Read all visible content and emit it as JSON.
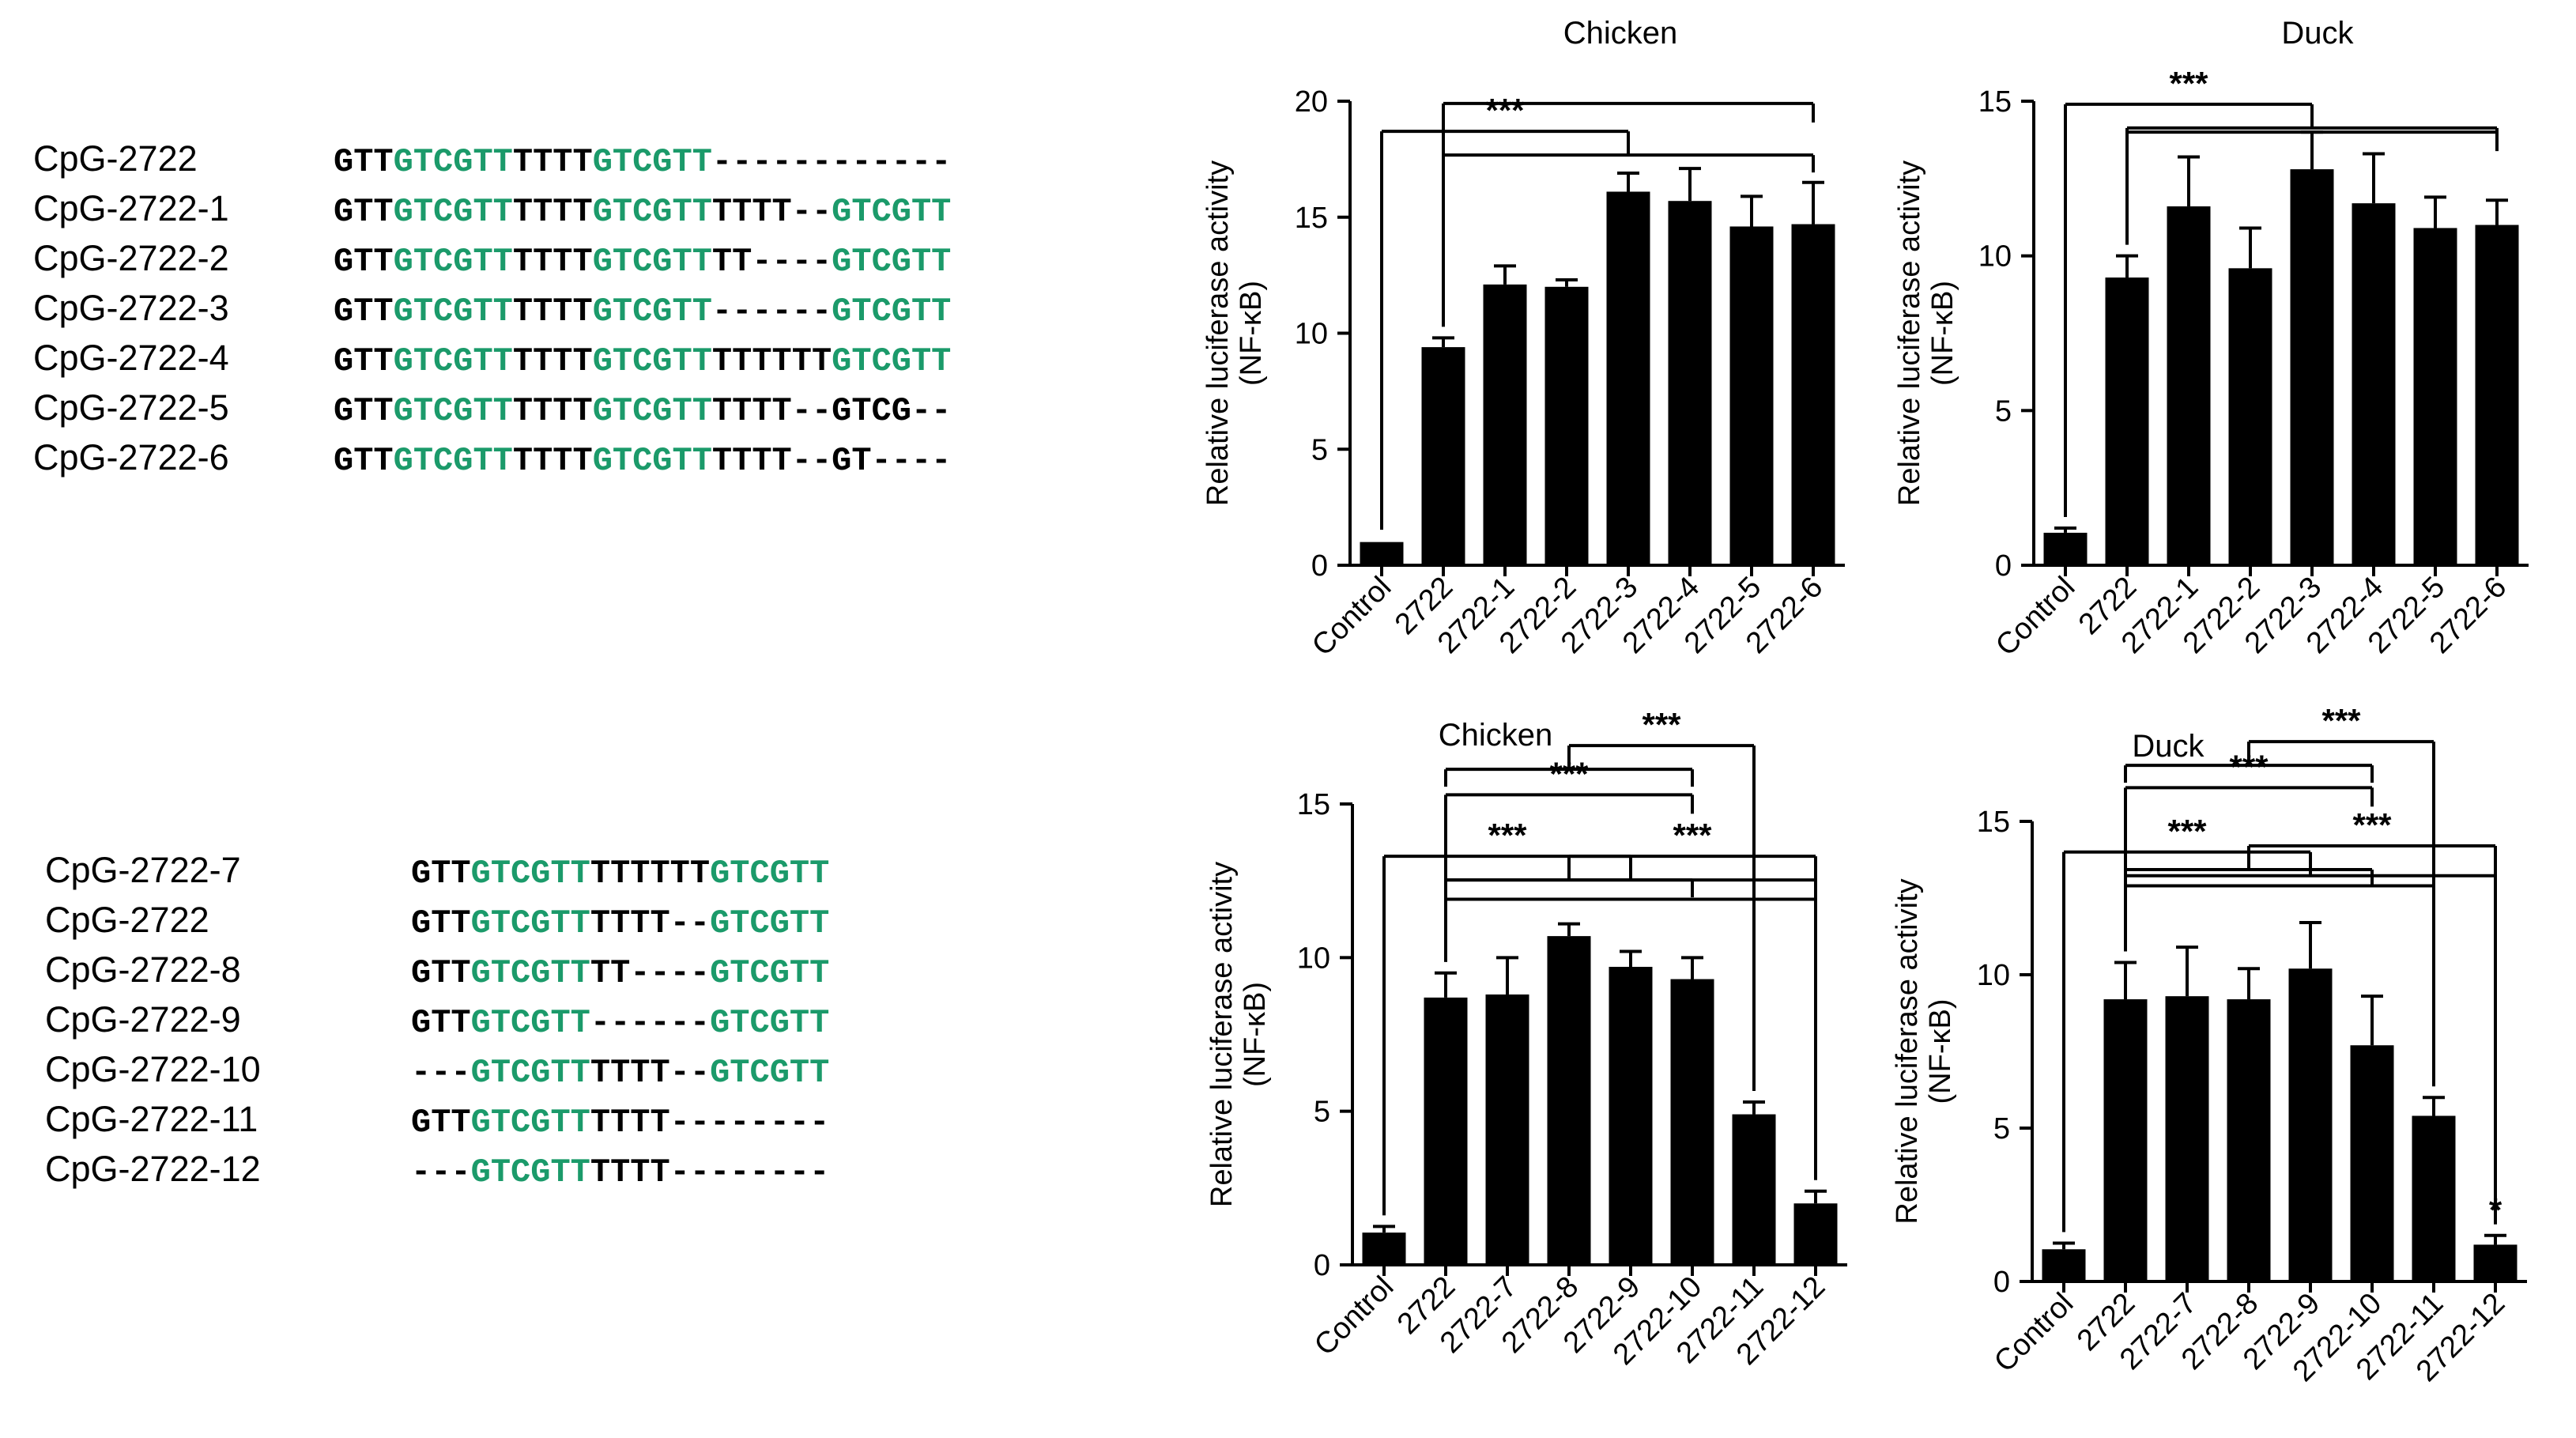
{
  "colors": {
    "motif": "#1b9a6a",
    "base": "#000000",
    "bar": "#000000"
  },
  "sequences_top": [
    {
      "name": "CpG-2722",
      "segments": [
        [
          "b",
          "GTT"
        ],
        [
          "g",
          "GTCGTT"
        ],
        [
          "b",
          "TTTT"
        ],
        [
          "g",
          "GTCGTT"
        ],
        [
          "b",
          "------------"
        ]
      ]
    },
    {
      "name": "CpG-2722-1",
      "segments": [
        [
          "b",
          "GTT"
        ],
        [
          "g",
          "GTCGTT"
        ],
        [
          "b",
          "TTTT"
        ],
        [
          "g",
          "GTCGTT"
        ],
        [
          "b",
          "TTTT--"
        ],
        [
          "g",
          "GTCGTT"
        ]
      ]
    },
    {
      "name": "CpG-2722-2",
      "segments": [
        [
          "b",
          "GTT"
        ],
        [
          "g",
          "GTCGTT"
        ],
        [
          "b",
          "TTTT"
        ],
        [
          "g",
          "GTCGTT"
        ],
        [
          "b",
          "TT----"
        ],
        [
          "g",
          "GTCGTT"
        ]
      ]
    },
    {
      "name": "CpG-2722-3",
      "segments": [
        [
          "b",
          "GTT"
        ],
        [
          "g",
          "GTCGTT"
        ],
        [
          "b",
          "TTTT"
        ],
        [
          "g",
          "GTCGTT"
        ],
        [
          "b",
          "------"
        ],
        [
          "g",
          "GTCGTT"
        ]
      ]
    },
    {
      "name": "CpG-2722-4",
      "segments": [
        [
          "b",
          "GTT"
        ],
        [
          "g",
          "GTCGTT"
        ],
        [
          "b",
          "TTTT"
        ],
        [
          "g",
          "GTCGTT"
        ],
        [
          "b",
          "TTTTTT"
        ],
        [
          "g",
          "GTCGTT"
        ]
      ]
    },
    {
      "name": "CpG-2722-5",
      "segments": [
        [
          "b",
          "GTT"
        ],
        [
          "g",
          "GTCGTT"
        ],
        [
          "b",
          "TTTT"
        ],
        [
          "g",
          "GTCGTT"
        ],
        [
          "b",
          "TTTT--GTCG--"
        ]
      ]
    },
    {
      "name": "CpG-2722-6",
      "segments": [
        [
          "b",
          "GTT"
        ],
        [
          "g",
          "GTCGTT"
        ],
        [
          "b",
          "TTTT"
        ],
        [
          "g",
          "GTCGTT"
        ],
        [
          "b",
          "TTTT--GT----"
        ]
      ]
    }
  ],
  "sequences_bottom": [
    {
      "name": "CpG-2722-7",
      "segments": [
        [
          "b",
          "GTT"
        ],
        [
          "g",
          "GTCGTT"
        ],
        [
          "b",
          "TTTTTT"
        ],
        [
          "g",
          "GTCGTT"
        ]
      ]
    },
    {
      "name": "CpG-2722",
      "segments": [
        [
          "b",
          "GTT"
        ],
        [
          "g",
          "GTCGTT"
        ],
        [
          "b",
          "TTTT--"
        ],
        [
          "g",
          "GTCGTT"
        ]
      ]
    },
    {
      "name": "CpG-2722-8",
      "segments": [
        [
          "b",
          "GTT"
        ],
        [
          "g",
          "GTCGTT"
        ],
        [
          "b",
          "TT----"
        ],
        [
          "g",
          "GTCGTT"
        ]
      ]
    },
    {
      "name": "CpG-2722-9",
      "segments": [
        [
          "b",
          "GTT"
        ],
        [
          "g",
          "GTCGTT"
        ],
        [
          "b",
          "------"
        ],
        [
          "g",
          "GTCGTT"
        ]
      ]
    },
    {
      "name": "CpG-2722-10",
      "segments": [
        [
          "b",
          "---"
        ],
        [
          "g",
          "GTCGTT"
        ],
        [
          "b",
          "TTTT--"
        ],
        [
          "g",
          "GTCGTT"
        ]
      ]
    },
    {
      "name": "CpG-2722-11",
      "segments": [
        [
          "b",
          "GTT"
        ],
        [
          "g",
          "GTCGTT"
        ],
        [
          "b",
          "TTTT--------"
        ]
      ]
    },
    {
      "name": "CpG-2722-12",
      "segments": [
        [
          "b",
          "---"
        ],
        [
          "g",
          "GTCGTT"
        ],
        [
          "b",
          "TTTT--------"
        ]
      ]
    }
  ],
  "chart_data": [
    {
      "type": "bar",
      "title": "Chicken",
      "ylabel_line1": "Relative luciferase activity",
      "ylabel_line2": "(NF-κB)",
      "ylim": [
        0,
        20
      ],
      "yticks": [
        "0",
        "5",
        "10",
        "15",
        "20"
      ],
      "categories": [
        "Control",
        "2722",
        "2722-1",
        "2722-2",
        "2722-3",
        "2722-4",
        "2722-5",
        "2722-6"
      ],
      "values": [
        1.0,
        9.4,
        12.1,
        12.0,
        16.1,
        15.7,
        14.6,
        14.7
      ],
      "errors": [
        0.05,
        0.4,
        0.8,
        0.3,
        0.8,
        1.4,
        1.3,
        1.8
      ],
      "significance": [
        {
          "label": "***",
          "from": 0,
          "to": [
            1,
            7
          ],
          "level": 18.7
        },
        {
          "label": "",
          "from": 1,
          "to": [
            7
          ],
          "level": 19.9
        }
      ]
    },
    {
      "type": "bar",
      "title": "Duck",
      "ylabel_line1": "Relative luciferase activity",
      "ylabel_line2": "(NF-κB)",
      "ylim": [
        0,
        15
      ],
      "yticks": [
        "0",
        "5",
        "10",
        "15"
      ],
      "categories": [
        "Control",
        "2722",
        "2722-1",
        "2722-2",
        "2722-3",
        "2722-4",
        "2722-5",
        "2722-6"
      ],
      "values": [
        1.05,
        9.3,
        11.6,
        9.6,
        12.8,
        11.7,
        10.9,
        11.0
      ],
      "errors": [
        0.15,
        0.7,
        1.6,
        1.3,
        1.2,
        1.6,
        1.0,
        0.8
      ],
      "significance": [
        {
          "label": "***",
          "from": 0,
          "to": [
            1,
            7
          ],
          "level": 14.9
        },
        {
          "label": "",
          "from": 1,
          "to": [
            7
          ],
          "level": 14.0
        }
      ]
    },
    {
      "type": "bar",
      "title": "Chicken",
      "ylabel_line1": "Relative luciferase activity",
      "ylabel_line2": "(NF-κB)",
      "ylim": [
        0,
        15
      ],
      "yticks": [
        "0",
        "5",
        "10",
        "15"
      ],
      "categories": [
        "Control",
        "2722",
        "2722-7",
        "2722-8",
        "2722-9",
        "2722-10",
        "2722-11",
        "2722-12"
      ],
      "values": [
        1.05,
        8.7,
        8.8,
        10.7,
        9.7,
        9.3,
        4.9,
        2.0
      ],
      "errors": [
        0.2,
        0.8,
        1.2,
        0.4,
        0.5,
        0.7,
        0.4,
        0.4
      ],
      "significance": [
        {
          "label": "***",
          "from": 0,
          "to": [
            1,
            7
          ],
          "level": 13.3
        },
        {
          "label": "",
          "from": 1,
          "to": [
            7
          ],
          "level": 11.9
        },
        {
          "label": "***",
          "from": 1,
          "to": [
            5
          ],
          "level": 15.3
        },
        {
          "label": "***",
          "from": 6,
          "to": [
            1,
            5
          ],
          "level": 16.9
        },
        {
          "label": "***",
          "from": 7,
          "to": [
            1,
            5
          ],
          "level": 13.3
        }
      ]
    },
    {
      "type": "bar",
      "title": "Duck",
      "ylabel_line1": "Relative luciferase activity",
      "ylabel_line2": "(NF-κB)",
      "ylim": [
        0,
        15
      ],
      "yticks": [
        "0",
        "5",
        "10",
        "15"
      ],
      "categories": [
        "Control",
        "2722",
        "2722-7",
        "2722-8",
        "2722-9",
        "2722-10",
        "2722-11",
        "2722-12"
      ],
      "values": [
        1.05,
        9.2,
        9.3,
        9.2,
        10.2,
        7.7,
        5.4,
        1.2
      ],
      "errors": [
        0.2,
        1.2,
        1.6,
        1.0,
        1.5,
        1.6,
        0.6,
        0.3
      ],
      "significance": [
        {
          "label": "***",
          "from": 0,
          "to": [
            1,
            7
          ],
          "level": 14.0
        },
        {
          "label": "",
          "from": 1,
          "to": [
            6
          ],
          "level": 12.9
        },
        {
          "label": "***",
          "from": 1,
          "to": [
            5
          ],
          "level": 16.1
        },
        {
          "label": "***",
          "from": 6,
          "to": [
            1,
            5
          ],
          "level": 17.6
        },
        {
          "label": "***",
          "from": 7,
          "to": [
            1,
            5
          ],
          "level": 14.2
        },
        {
          "label": "*",
          "star_only": 7
        }
      ]
    }
  ]
}
